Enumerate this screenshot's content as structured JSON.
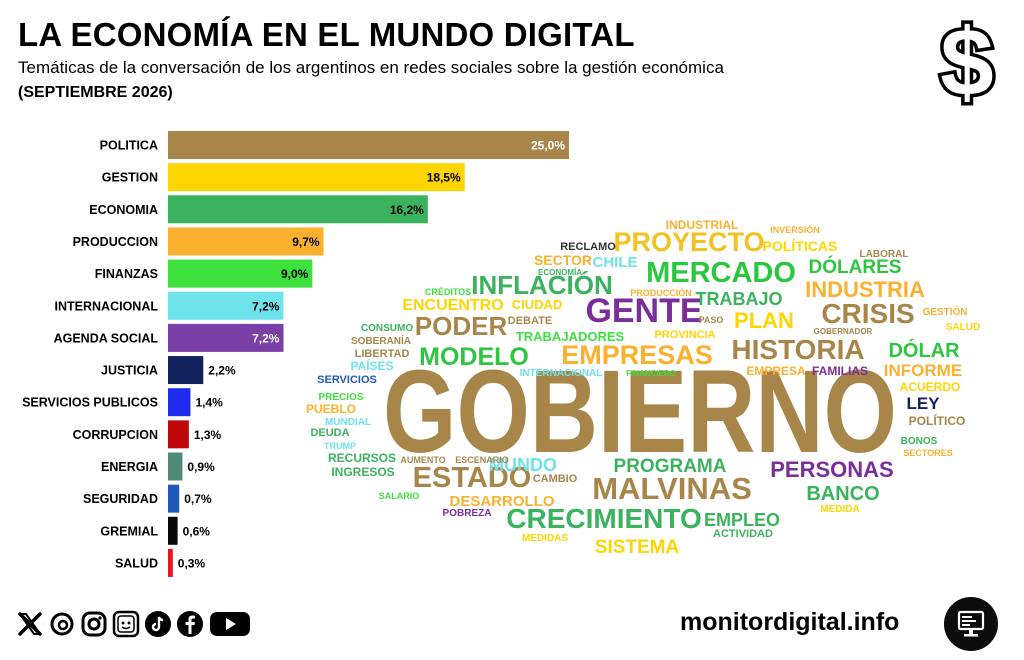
{
  "header": {
    "title": "LA ECONOMÍA EN EL MUNDO DIGITAL",
    "subtitle": "Temáticas de la conversación de los argentinos en redes sociales sobre la gestión económica",
    "period": "(SEPTIEMBRE 2026)",
    "icon": "dollar-sign-icon"
  },
  "chart_data": {
    "type": "bar",
    "orientation": "horizontal",
    "categories": [
      "POLITICA",
      "GESTION",
      "ECONOMIA",
      "PRODUCCION",
      "FINANZAS",
      "INTERNACIONAL",
      "AGENDA SOCIAL",
      "JUSTICIA",
      "SERVICIOS PUBLICOS",
      "CORRUPCION",
      "ENERGIA",
      "SEGURIDAD",
      "GREMIAL",
      "SALUD"
    ],
    "values": [
      25.0,
      18.5,
      16.2,
      9.7,
      9.0,
      7.2,
      7.2,
      2.2,
      1.4,
      1.3,
      0.9,
      0.7,
      0.6,
      0.3
    ],
    "value_labels": [
      "25,0%",
      "18,5%",
      "16,2%",
      "9,7%",
      "9,0%",
      "7,2%",
      "7,2%",
      "2,2%",
      "1,4%",
      "1,3%",
      "0,9%",
      "0,7%",
      "0,6%",
      "0,3%"
    ],
    "colors": [
      "#A8864A",
      "#FFD500",
      "#3BB35E",
      "#FBB12E",
      "#3EE03E",
      "#6FE3EC",
      "#7B3FA8",
      "#12235E",
      "#1E2CF0",
      "#C0080C",
      "#4F8A79",
      "#1F5AB8",
      "#0A0A0A",
      "#E8161E"
    ],
    "label_colors": [
      "#ffffff",
      "#000000",
      "#000000",
      "#000000",
      "#000000",
      "#000000",
      "#ffffff",
      "#000000",
      "#000000",
      "#000000",
      "#000000",
      "#000000",
      "#000000",
      "#000000"
    ],
    "xlim": [
      0,
      25
    ],
    "grid": false,
    "legend": "none"
  },
  "word_cloud": [
    {
      "text": "GOBIERNO",
      "color": "#A8864A"
    },
    {
      "text": "GENTE",
      "color": "#7B2D99"
    },
    {
      "text": "MERCADO",
      "color": "#2CC640"
    },
    {
      "text": "PROYECTO",
      "color": "#F3C222"
    },
    {
      "text": "INFLACIÓN",
      "color": "#3BB35E"
    },
    {
      "text": "EMPRESAS",
      "color": "#FBB12E"
    },
    {
      "text": "HISTORIA",
      "color": "#A8864A"
    },
    {
      "text": "MODELO",
      "color": "#2CC640"
    },
    {
      "text": "PODER",
      "color": "#A8864A"
    },
    {
      "text": "CRISIS",
      "color": "#A8864A"
    },
    {
      "text": "INDUSTRIA",
      "color": "#FBB12E"
    },
    {
      "text": "ESTADO",
      "color": "#A8864A"
    },
    {
      "text": "MALVINAS",
      "color": "#A8864A"
    },
    {
      "text": "CRECIMIENTO",
      "color": "#3BB35E"
    },
    {
      "text": "PERSONAS",
      "color": "#7B2D99"
    },
    {
      "text": "PROGRAMA",
      "color": "#3BB35E"
    },
    {
      "text": "DÓLARES",
      "color": "#2CC640"
    },
    {
      "text": "PLAN",
      "color": "#FFD500"
    },
    {
      "text": "TRABAJO",
      "color": "#3BB35E"
    },
    {
      "text": "DÓLAR",
      "color": "#2CC640"
    },
    {
      "text": "BANCO",
      "color": "#3BB35E"
    },
    {
      "text": "SISTEMA",
      "color": "#FFD500"
    },
    {
      "text": "EMPLEO",
      "color": "#3BB35E"
    },
    {
      "text": "INFORME",
      "color": "#FBB12E"
    },
    {
      "text": "MUNDO",
      "color": "#6FE3EC"
    },
    {
      "text": "ENCUENTRO",
      "color": "#FFD500"
    },
    {
      "text": "CHILE",
      "color": "#6FE3EC"
    },
    {
      "text": "SECTOR",
      "color": "#FBB12E"
    },
    {
      "text": "POLÍTICAS",
      "color": "#FFD500"
    },
    {
      "text": "DESARROLLO",
      "color": "#FBB12E"
    },
    {
      "text": "LEY",
      "color": "#12235E"
    },
    {
      "text": "TRABAJADORES",
      "color": "#3EE03E"
    },
    {
      "text": "LIBERTAD",
      "color": "#A8864A"
    },
    {
      "text": "CIUDAD",
      "color": "#FFD500"
    },
    {
      "text": "DEBATE",
      "color": "#A8864A"
    },
    {
      "text": "EMPRESA",
      "color": "#FBB12E"
    },
    {
      "text": "FAMILIAS",
      "color": "#7B2D99"
    },
    {
      "text": "ACUERDO",
      "color": "#FFD500"
    },
    {
      "text": "INDUSTRIAL",
      "color": "#FBB12E"
    },
    {
      "text": "RECLAMO",
      "color": "#333333"
    },
    {
      "text": "LABORAL",
      "color": "#A8864A"
    },
    {
      "text": "INVERSIÓN",
      "color": "#FBB12E"
    },
    {
      "text": "CRÉDITOS",
      "color": "#3EE03E"
    },
    {
      "text": "ECONOMÍA",
      "color": "#3BB35E"
    },
    {
      "text": "PRODUCCIÓN",
      "color": "#FBB12E"
    },
    {
      "text": "PASO",
      "color": "#A8864A"
    },
    {
      "text": "PROVINCIA",
      "color": "#FFD500"
    },
    {
      "text": "GOBERNADOR",
      "color": "#A8864A"
    },
    {
      "text": "GESTIÓN",
      "color": "#FBB12E"
    },
    {
      "text": "SALUD",
      "color": "#FFD500"
    },
    {
      "text": "CONSUMO",
      "color": "#3BB35E"
    },
    {
      "text": "SOBERANÍA",
      "color": "#A8864A"
    },
    {
      "text": "PAÍSES",
      "color": "#6FE3EC"
    },
    {
      "text": "SERVICIOS",
      "color": "#1F5AB8"
    },
    {
      "text": "INTERNACIONAL",
      "color": "#6FE3EC"
    },
    {
      "text": "FINANCIERO",
      "color": "#3EE03E"
    },
    {
      "text": "POLÍTICO",
      "color": "#A8864A"
    },
    {
      "text": "PRECIOS",
      "color": "#3EE03E"
    },
    {
      "text": "PUEBLO",
      "color": "#FBB12E"
    },
    {
      "text": "MUNDIAL",
      "color": "#6FE3EC"
    },
    {
      "text": "DEUDA",
      "color": "#3BB35E"
    },
    {
      "text": "TRUMP",
      "color": "#6FE3EC"
    },
    {
      "text": "BONOS",
      "color": "#3BB35E"
    },
    {
      "text": "SECTORES",
      "color": "#FBB12E"
    },
    {
      "text": "RECURSOS",
      "color": "#3BB35E"
    },
    {
      "text": "INGRESOS",
      "color": "#3BB35E"
    },
    {
      "text": "AUMENTO",
      "color": "#A8864A"
    },
    {
      "text": "ESCENARIO",
      "color": "#A8864A"
    },
    {
      "text": "CAMBIO",
      "color": "#A8864A"
    },
    {
      "text": "SALARIO",
      "color": "#3EE03E"
    },
    {
      "text": "POBREZA",
      "color": "#7B2D99"
    },
    {
      "text": "MEDIDA",
      "color": "#FFD500"
    },
    {
      "text": "ACTIVIDAD",
      "color": "#3BB35E"
    },
    {
      "text": "MEDIDAS",
      "color": "#FFD500"
    }
  ],
  "footer": {
    "social_icons": [
      "x-icon",
      "threads-icon",
      "instagram-icon",
      "bluesky-icon",
      "tiktok-icon",
      "facebook-icon",
      "youtube-icon"
    ],
    "website": "monitordigital.info",
    "logo_icon": "monitor-icon"
  }
}
